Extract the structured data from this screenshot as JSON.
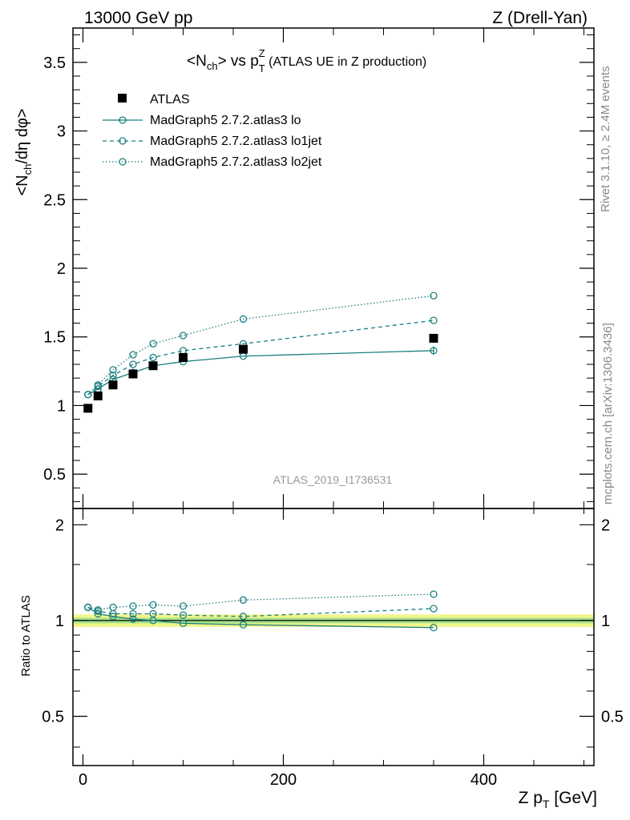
{
  "header": {
    "left": "13000 GeV pp",
    "right": "Z (Drell-Yan)"
  },
  "side_labels": {
    "rivet": "Rivet 3.1.10, ≥ 2.4M events",
    "mcplots": "mcplots.cern.ch [arXiv:1306.3436]"
  },
  "chart_data": {
    "type": "line",
    "title_parts": {
      "n": "<N",
      "n_sub": "ch",
      "mid": "> vs p",
      "p_sub": "T",
      "p_sup": "Z",
      "suffix": " (ATLAS UE in Z production)"
    },
    "watermark": "ATLAS_2019_I1736531",
    "ylabel_parts": {
      "a": "<N",
      "sub": "ch",
      "b": "/dη dφ>"
    },
    "ratio_ylabel": "Ratio to ATLAS",
    "xlabel_parts": {
      "a": "Z p",
      "sub": "T",
      "b": " [GeV]"
    },
    "xlim": [
      -10,
      510
    ],
    "ylim": [
      0.25,
      3.75
    ],
    "ratio_ylim": [
      0.35,
      2.25
    ],
    "x_ticks": [
      0,
      200,
      400
    ],
    "x_tick_labels": [
      "0",
      "200",
      "400"
    ],
    "y_ticks": [
      0.5,
      1,
      1.5,
      2,
      2.5,
      3,
      3.5
    ],
    "y_tick_labels": [
      "0.5",
      "1",
      "1.5",
      "2",
      "2.5",
      "3",
      "3.5"
    ],
    "ratio_y_ticks": [
      0.5,
      1,
      2
    ],
    "ratio_y_tick_labels": [
      "0.5",
      "1",
      "2"
    ],
    "x": [
      5,
      15,
      30,
      50,
      70,
      100,
      160,
      350
    ],
    "data": {
      "name": "ATLAS",
      "values": [
        0.98,
        1.07,
        1.15,
        1.23,
        1.29,
        1.35,
        1.41,
        1.49
      ]
    },
    "series": [
      {
        "name": "MadGraph5 2.7.2.atlas3 lo",
        "style": "solid",
        "values": [
          1.08,
          1.12,
          1.19,
          1.24,
          1.29,
          1.32,
          1.36,
          1.4
        ]
      },
      {
        "name": "MadGraph5 2.7.2.atlas3 lo1jet",
        "style": "dashed",
        "values": [
          1.08,
          1.14,
          1.22,
          1.3,
          1.35,
          1.4,
          1.45,
          1.62
        ]
      },
      {
        "name": "MadGraph5 2.7.2.atlas3 lo2jet",
        "style": "dotted",
        "values": [
          1.08,
          1.15,
          1.26,
          1.37,
          1.45,
          1.51,
          1.63,
          1.8
        ]
      }
    ],
    "ratios": [
      [
        1.1,
        1.05,
        1.03,
        1.01,
        1.0,
        0.98,
        0.97,
        0.95
      ],
      [
        1.1,
        1.07,
        1.05,
        1.05,
        1.05,
        1.04,
        1.03,
        1.09
      ],
      [
        1.1,
        1.08,
        1.1,
        1.11,
        1.12,
        1.11,
        1.16,
        1.21
      ]
    ],
    "colors": {
      "mc": "#1b7f7f",
      "band_outer": "#f3f58a",
      "band_inner": "#a4e38c"
    }
  }
}
